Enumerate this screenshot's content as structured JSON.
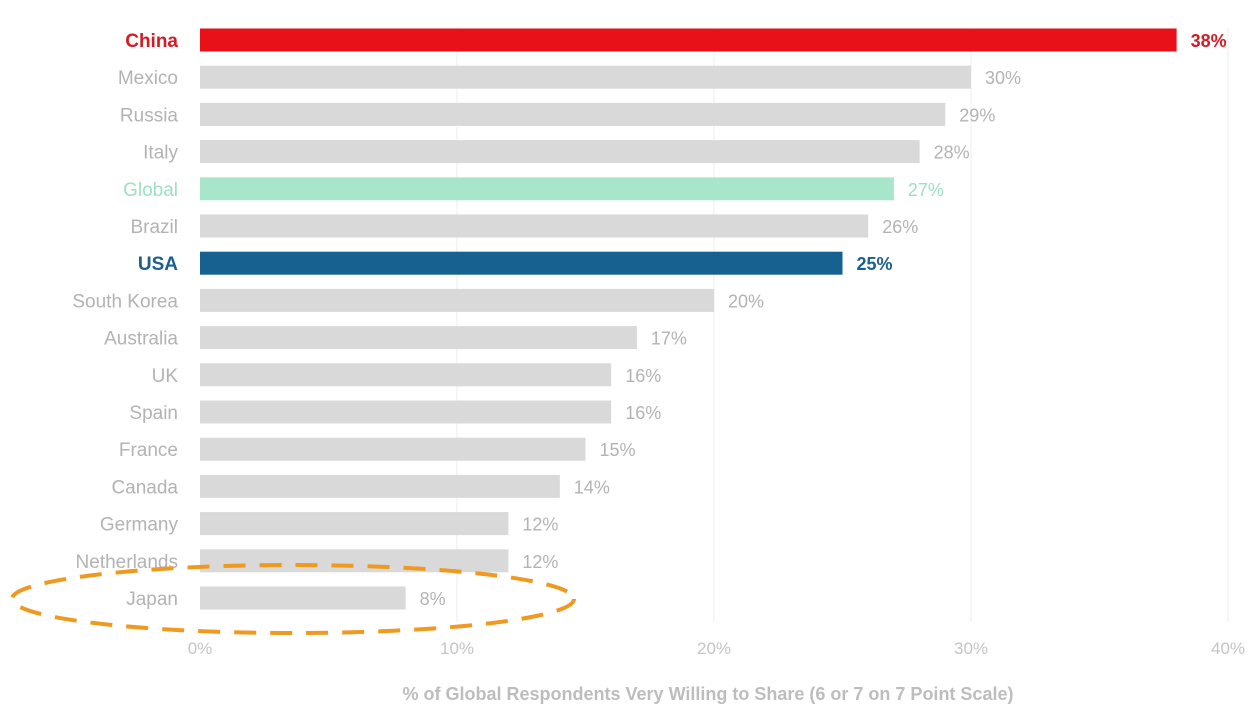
{
  "chart_data": {
    "type": "bar",
    "orientation": "horizontal",
    "categories": [
      "China",
      "Mexico",
      "Russia",
      "Italy",
      "Global",
      "Brazil",
      "USA",
      "South Korea",
      "Australia",
      "UK",
      "Spain",
      "France",
      "Canada",
      "Germany",
      "Netherlands",
      "Japan"
    ],
    "values": [
      38,
      30,
      29,
      28,
      27,
      26,
      25,
      20,
      17,
      16,
      16,
      15,
      14,
      12,
      12,
      8
    ],
    "value_labels": [
      "38%",
      "30%",
      "29%",
      "28%",
      "27%",
      "26%",
      "25%",
      "20%",
      "17%",
      "16%",
      "16%",
      "15%",
      "14%",
      "12%",
      "12%",
      "8%"
    ],
    "xlabel": "% of Global Respondents Very Willing to Share (6 or 7 on 7 Point Scale)",
    "xlim": [
      0,
      40
    ],
    "x_ticks": [
      0,
      10,
      20,
      30,
      40
    ],
    "x_tick_labels": [
      "0%",
      "10%",
      "20%",
      "30%",
      "40%"
    ],
    "grid": "vertical",
    "colors": {
      "default_bar": "#d9d9d9",
      "default_text": "#b3b3b3",
      "China": "#e8111a",
      "Global": "#a8e6cc",
      "USA": "#176190",
      "highlight_text_China": "#d31b25",
      "highlight_text_Global": "#9de0c2",
      "highlight_text_USA": "#1a5f8e",
      "annotation": "#f0991f"
    },
    "highlight_bold": [
      "China",
      "USA"
    ],
    "annotation": {
      "shape": "dashed-ellipse",
      "target": "Japan"
    }
  }
}
